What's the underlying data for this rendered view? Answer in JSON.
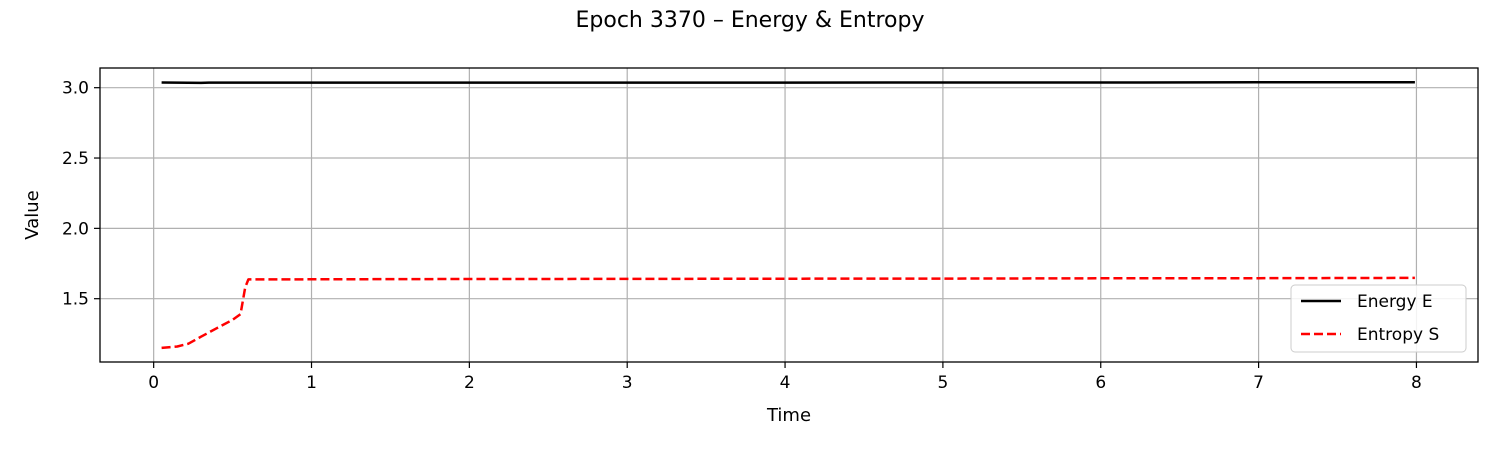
{
  "chart_data": {
    "type": "line",
    "title": "Epoch 3370 – Energy & Entropy",
    "xlabel": "Time",
    "ylabel": "Value",
    "xlim": [
      -0.34,
      8.39
    ],
    "ylim": [
      1.05,
      3.14
    ],
    "xticks": [
      0,
      1,
      2,
      3,
      4,
      5,
      6,
      7,
      8
    ],
    "yticks": [
      1.5,
      2.0,
      2.5,
      3.0
    ],
    "ytick_labels": [
      "1.5",
      "2.0",
      "2.5",
      "3.0"
    ],
    "grid": true,
    "legend_position": "lower right",
    "series": [
      {
        "name": "Energy E",
        "color": "#000000",
        "style": "solid",
        "x": [
          0.05,
          0.3,
          0.35,
          1.0,
          2.0,
          3.0,
          4.0,
          5.0,
          6.0,
          7.0,
          7.99
        ],
        "y": [
          3.037,
          3.034,
          3.036,
          3.036,
          3.036,
          3.036,
          3.036,
          3.037,
          3.037,
          3.038,
          3.039
        ]
      },
      {
        "name": "Entropy S",
        "color": "#ff0000",
        "style": "dashed",
        "x": [
          0.05,
          0.15,
          0.22,
          0.3,
          0.4,
          0.5,
          0.55,
          0.58,
          0.6,
          0.7,
          1.0,
          2.0,
          3.0,
          4.0,
          5.0,
          6.0,
          7.0,
          7.99
        ],
        "y": [
          1.15,
          1.16,
          1.18,
          1.23,
          1.29,
          1.35,
          1.39,
          1.58,
          1.637,
          1.637,
          1.638,
          1.64,
          1.641,
          1.642,
          1.643,
          1.645,
          1.646,
          1.648
        ]
      }
    ]
  }
}
